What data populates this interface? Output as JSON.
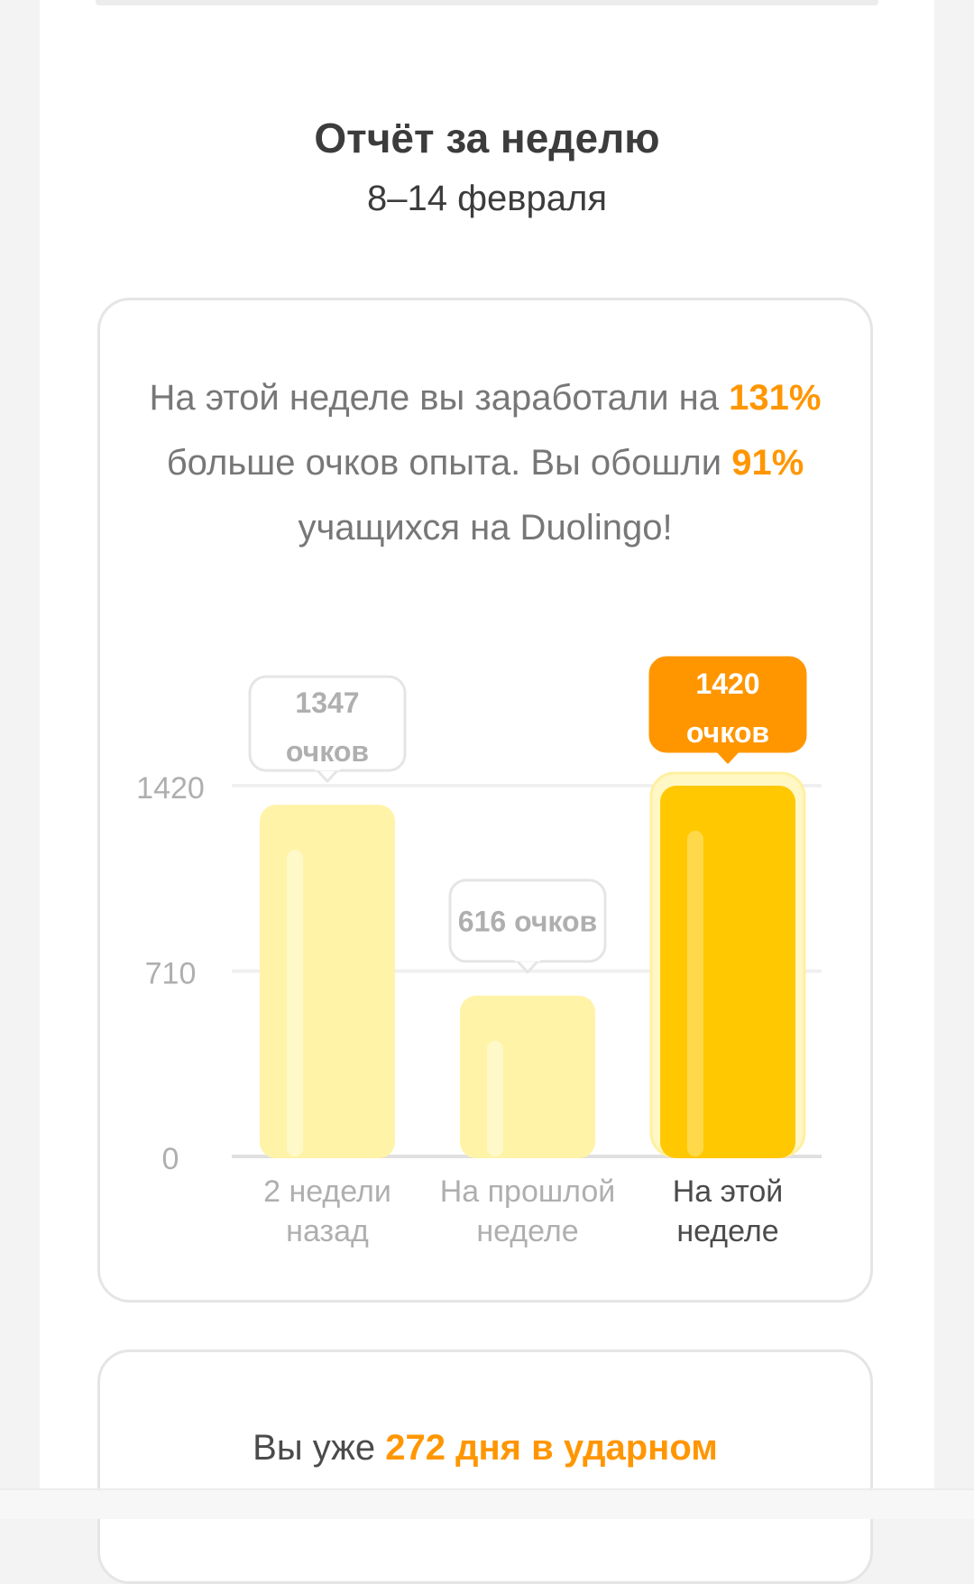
{
  "header": {
    "title": "Отчёт за неделю",
    "dates": "8–14 февраля"
  },
  "summary": {
    "part1": "На этой неделе вы заработали на ",
    "xp_increase": "131%",
    "part2": " больше очков опыта. Вы обошли ",
    "percentile": "91%",
    "part3": " учащихся на Duolingo!"
  },
  "streak": {
    "prefix": "Вы уже ",
    "highlight": "272 дня в ударном"
  },
  "colors": {
    "accent": "#ff9600",
    "bar_current": "#ffc800",
    "bar_past": "#fff3a8",
    "grid": "#f0f0f0",
    "axis": "#e0e0e0"
  },
  "chart_data": {
    "type": "bar",
    "categories": [
      "2 недели\nназад",
      "На прошлой\nнеделе",
      "На этой\nнеделе"
    ],
    "values": [
      1347,
      616,
      1420
    ],
    "value_labels": [
      "1347\nочков",
      "616 очков",
      "1420\nочков"
    ],
    "highlight_index": 2,
    "yticks": [
      0,
      710,
      1420
    ],
    "ylim": [
      0,
      1420
    ],
    "grid": true
  }
}
